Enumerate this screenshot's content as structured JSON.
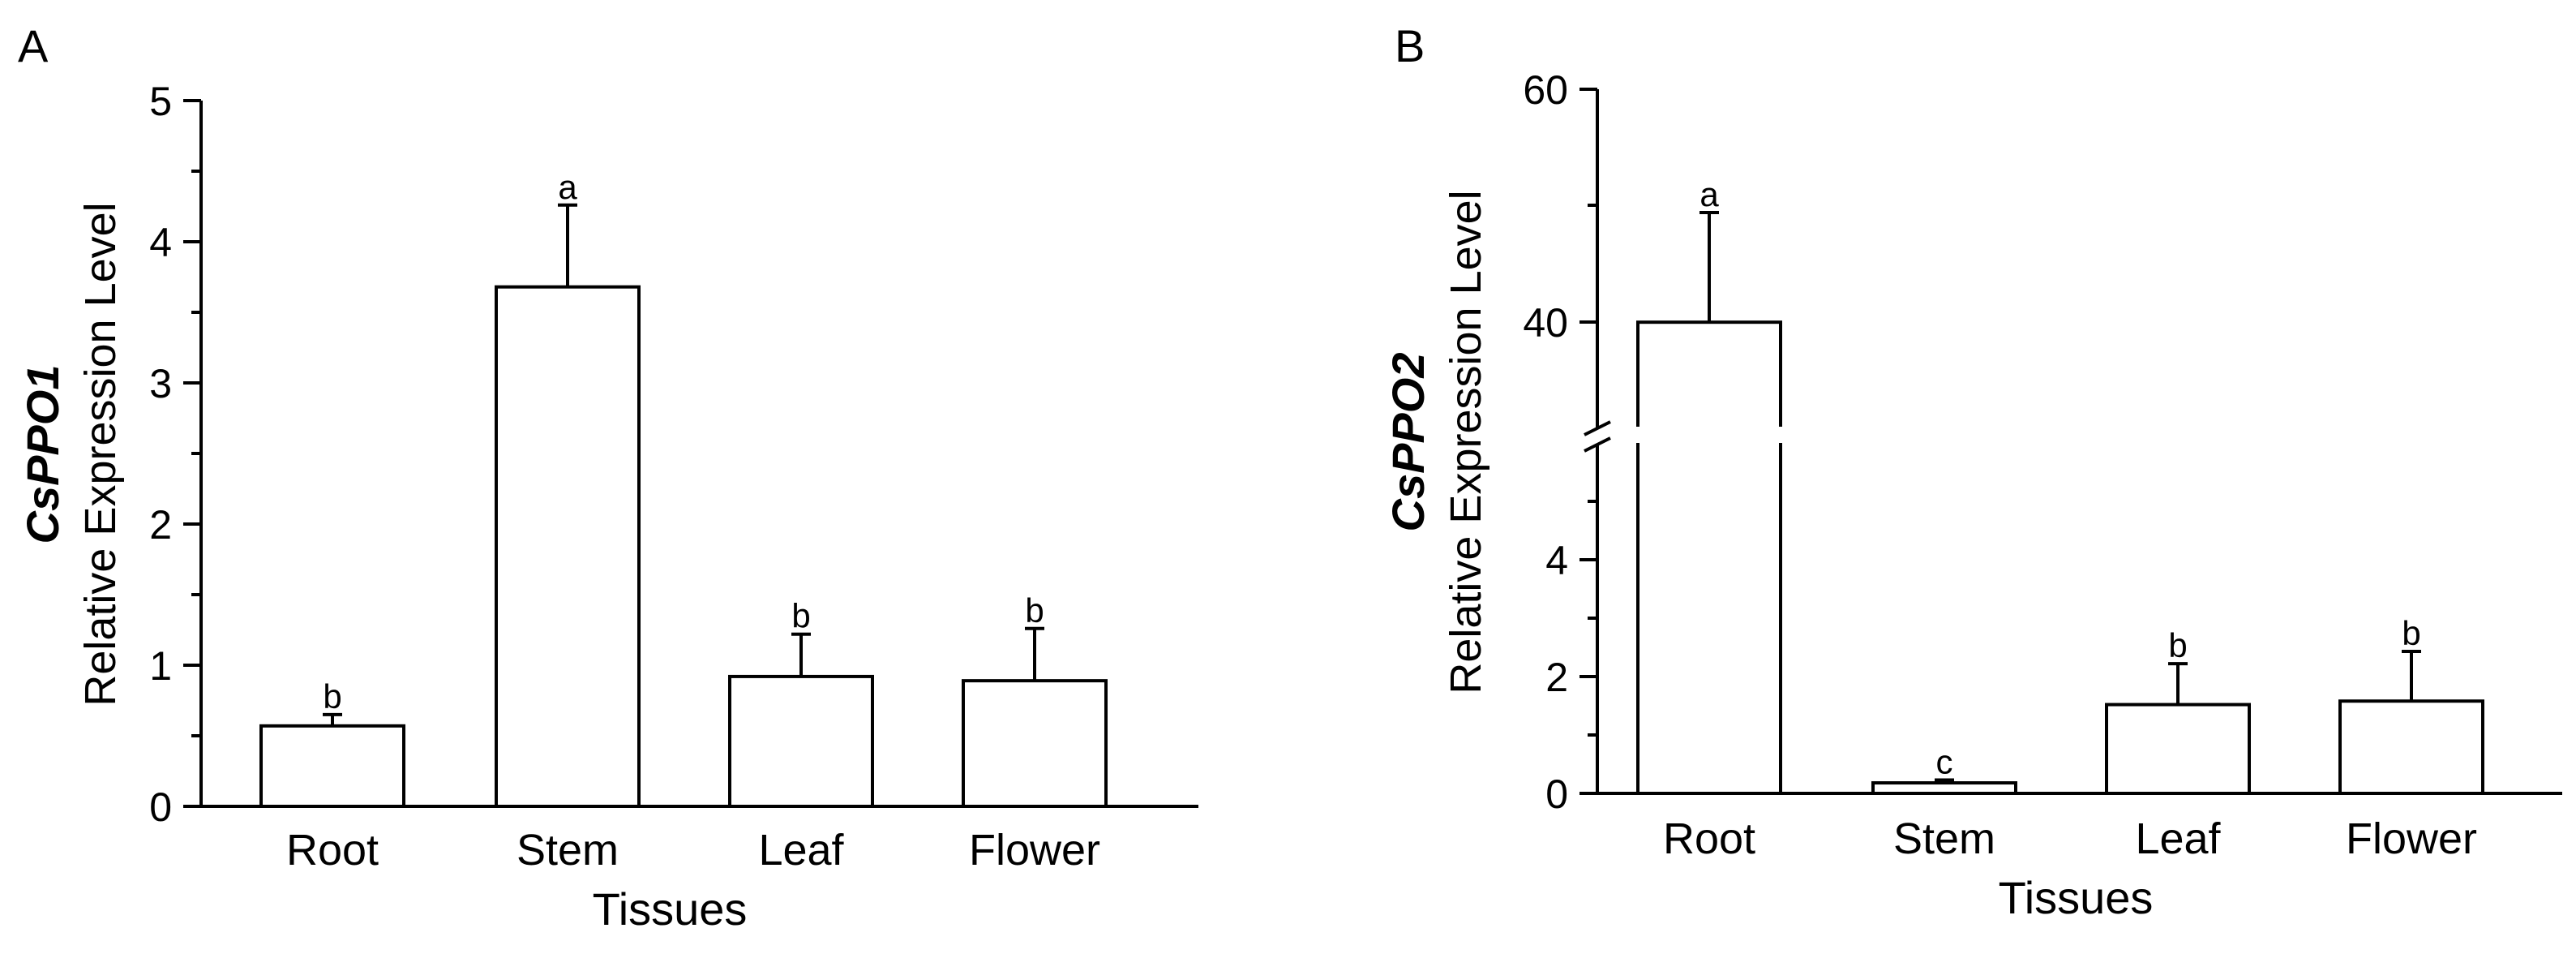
{
  "chart_data": [
    {
      "panel_label": "A",
      "type": "bar",
      "title": "",
      "xlabel": "Tissues",
      "ylabel_gene": "CsPPO1",
      "ylabel": "Relative Expression Level",
      "categories": [
        "Root",
        "Stem",
        "Leaf",
        "Flower"
      ],
      "values": [
        0.57,
        3.68,
        0.92,
        0.89
      ],
      "errors": [
        0.08,
        0.58,
        0.3,
        0.37
      ],
      "significance": [
        "b",
        "a",
        "b",
        "b"
      ],
      "ylim": [
        0,
        5
      ],
      "yticks": [
        "0",
        "1",
        "2",
        "3",
        "4",
        "5"
      ],
      "grid": false
    },
    {
      "panel_label": "B",
      "type": "bar",
      "title": "",
      "xlabel": "Tissues",
      "ylabel_gene": "CsPPO2",
      "ylabel": "Relative Expression Level",
      "categories": [
        "Root",
        "Stem",
        "Leaf",
        "Flower"
      ],
      "values": [
        41.3,
        0.18,
        1.52,
        1.58
      ],
      "errors": [
        8.8,
        0.05,
        0.7,
        0.85
      ],
      "significance": [
        "a",
        "c",
        "b",
        "b"
      ],
      "axis_break": [
        5.8,
        32
      ],
      "ylim_lower": [
        0,
        5.8
      ],
      "ylim_upper": [
        32,
        60
      ],
      "yticks_lower": [
        "0",
        "2",
        "4"
      ],
      "yticks_upper": [
        "40",
        "60"
      ],
      "grid": false
    }
  ]
}
